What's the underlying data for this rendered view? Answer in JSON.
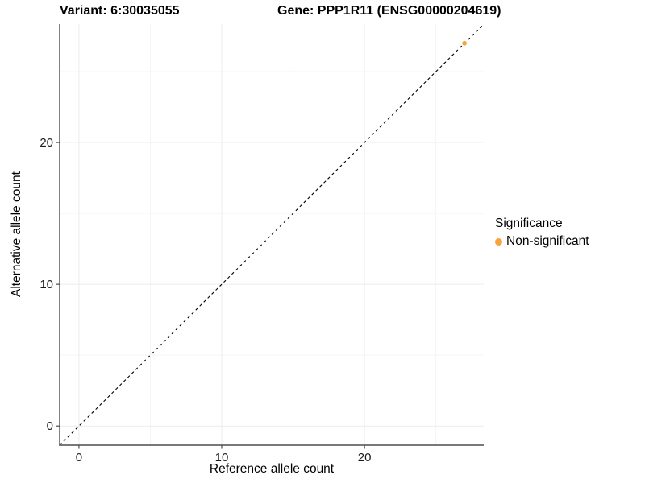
{
  "chart_data": {
    "type": "scatter",
    "titles": {
      "left": "Variant: 6:30035055",
      "right": "Gene: PPP1R11 (ENSG00000204619)"
    },
    "xlabel": "Reference allele count",
    "ylabel": "Alternative allele count",
    "xlim": [
      -1.35,
      28.35
    ],
    "ylim": [
      -1.35,
      28.35
    ],
    "x_ticks": [
      0,
      10,
      20
    ],
    "y_ticks": [
      0,
      10,
      20
    ],
    "x_minor_ticks": [
      5,
      15,
      25
    ],
    "y_minor_ticks": [
      5,
      15,
      25
    ],
    "grid": "major+minor",
    "reference_line": {
      "type": "identity-diagonal",
      "style": "dashed",
      "color": "#000000"
    },
    "series": [
      {
        "name": "Non-significant",
        "color": "#F8A33C",
        "points": [
          [
            27,
            27
          ]
        ]
      }
    ],
    "legend": {
      "title": "Significance",
      "position": "right",
      "items": [
        {
          "label": "Non-significant",
          "color": "#F8A33C"
        }
      ]
    }
  }
}
